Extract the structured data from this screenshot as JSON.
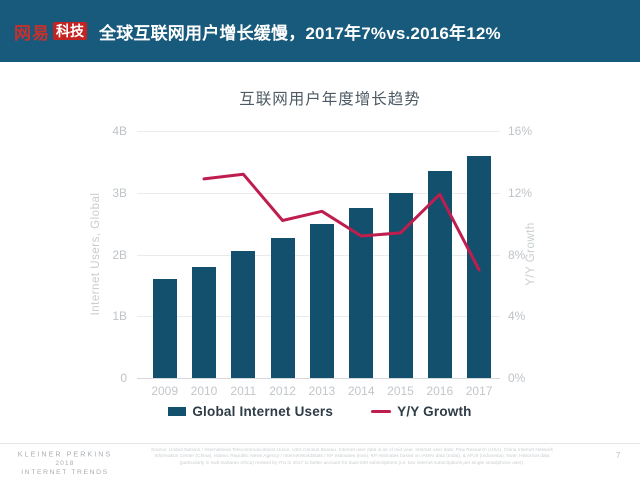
{
  "header": {
    "brand": "网易",
    "brand_badge": "科技",
    "title": "全球互联网用户增长缓慢，2017年7%vs.2016年12%"
  },
  "chart_data": {
    "type": "bar",
    "title": "互联网用户年度增长趋势",
    "categories": [
      "2009",
      "2010",
      "2011",
      "2012",
      "2013",
      "2014",
      "2015",
      "2016",
      "2017"
    ],
    "series": [
      {
        "name": "Global Internet Users",
        "type": "bar",
        "axis": "left",
        "unit": "billions",
        "values": [
          1.6,
          1.8,
          2.05,
          2.27,
          2.5,
          2.75,
          3.0,
          3.35,
          3.6
        ]
      },
      {
        "name": "Y/Y Growth",
        "type": "line",
        "axis": "right",
        "unit": "%",
        "values": [
          null,
          12.9,
          13.2,
          10.2,
          10.8,
          9.2,
          9.4,
          11.9,
          7.0
        ]
      }
    ],
    "left_axis": {
      "label": "Internet Users, Global",
      "ticks": [
        "4B",
        "3B",
        "2B",
        "1B",
        "0"
      ],
      "lim": [
        0,
        4
      ]
    },
    "right_axis": {
      "label": "Y/Y Growth",
      "ticks": [
        "16%",
        "12%",
        "8%",
        "4%",
        "0%"
      ],
      "lim": [
        0,
        16
      ]
    },
    "legend": {
      "position": "bottom",
      "items": [
        "Global Internet Users",
        "Y/Y Growth"
      ]
    },
    "grid": true,
    "colors": {
      "bar": "#13506e",
      "line": "#c01d4f"
    }
  },
  "footer": {
    "brand_line1": "KLEINER PERKINS",
    "brand_line2": "2018",
    "brand_line3": "INTERNET TRENDS",
    "source": "Source: United Nations / International Telecommunications Union, USA Census Bureau. Internet user data is as of mid-year. Internet user data: Pew Research (USA), China Internet Network Information Center (China), Islamic Republic News Agency / InternetWorldStats / KP estimates (Iran), KP estimates based on IAMAI data (India), & APJII (Indonesia). Note: Historical data (particularly in Sub-Saharan Africa) revised by ITU in 2017 to better account for dual-SIM subscriptions (i.e. two internet subscriptions per single smartphone user).",
    "page_number": "7"
  }
}
